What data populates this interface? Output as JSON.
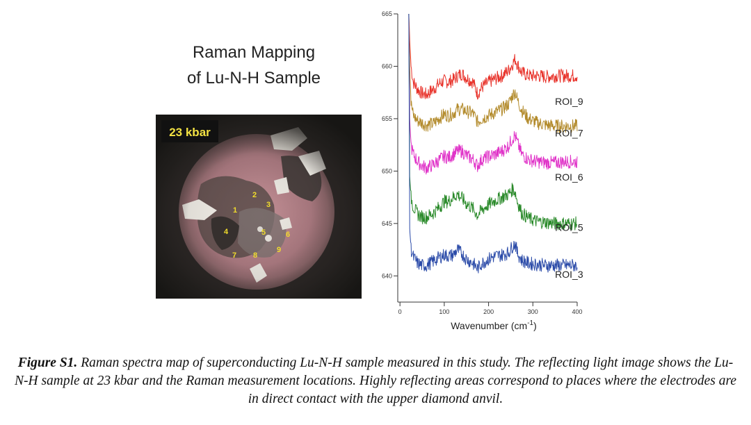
{
  "panel_title": {
    "line1": "Raman Mapping",
    "line2": "of Lu-N-H Sample"
  },
  "photo": {
    "pressure_label": "23 kbar",
    "points": [
      {
        "label": "1"
      },
      {
        "label": "2"
      },
      {
        "label": "3"
      },
      {
        "label": "4"
      },
      {
        "label": "5"
      },
      {
        "label": "6"
      },
      {
        "label": "7"
      },
      {
        "label": "8"
      },
      {
        "label": "9"
      }
    ]
  },
  "chart_data": {
    "type": "line",
    "title": "",
    "xlabel_main": "Wavenumber (cm",
    "xlabel_sup": "-1",
    "xlabel_close": ")",
    "ylabel": "",
    "xlim": [
      -5,
      400
    ],
    "ylim": [
      637.5,
      665
    ],
    "x_ticks": [
      0,
      100,
      200,
      300,
      400
    ],
    "y_ticks": [
      640,
      645,
      650,
      655,
      660,
      665
    ],
    "x_tick_labels": [
      "0",
      "100",
      "200",
      "300",
      "400"
    ],
    "y_tick_labels": [
      "640",
      "645",
      "650",
      "655",
      "660",
      "665"
    ],
    "x_range": [
      20,
      400
    ],
    "series": [
      {
        "name": "ROI_9",
        "color": "#e8322a",
        "baseline": 657.5,
        "x": [
          20,
          22,
          25,
          30,
          40,
          50,
          60,
          75,
          90,
          100,
          110,
          120,
          130,
          140,
          150,
          165,
          175,
          185,
          200,
          215,
          230,
          245,
          255,
          260,
          265,
          275,
          290,
          310,
          330,
          350,
          370,
          400
        ],
        "y": [
          665,
          662.5,
          660,
          658.5,
          657.8,
          657.4,
          657.3,
          657.8,
          658.4,
          658.6,
          658.5,
          658.7,
          659.1,
          659.3,
          658.9,
          658.5,
          657.4,
          658.0,
          658.5,
          658.8,
          659.1,
          659.6,
          660.3,
          660.7,
          660.2,
          659.4,
          659.1,
          659.1,
          659.0,
          659.1,
          659.1,
          659.1
        ]
      },
      {
        "name": "ROI_7",
        "color": "#b38b2c",
        "baseline": 654.5,
        "x": [
          20,
          22,
          25,
          30,
          40,
          50,
          60,
          75,
          90,
          100,
          110,
          120,
          130,
          140,
          150,
          165,
          175,
          185,
          200,
          215,
          230,
          245,
          255,
          260,
          265,
          275,
          290,
          310,
          330,
          350,
          370,
          400
        ],
        "y": [
          665,
          660,
          656.5,
          655.3,
          654.8,
          654.6,
          654.4,
          654.5,
          655.1,
          655.4,
          655.3,
          655.5,
          655.9,
          655.9,
          655.7,
          655.5,
          654.7,
          655.0,
          655.3,
          655.6,
          655.9,
          656.4,
          657.3,
          657.6,
          656.8,
          655.8,
          655.0,
          654.6,
          654.4,
          654.3,
          654.3,
          654.3
        ]
      },
      {
        "name": "ROI_6",
        "color": "#e033c8",
        "baseline": 650.3,
        "x": [
          20,
          22,
          25,
          30,
          40,
          50,
          60,
          75,
          90,
          100,
          110,
          120,
          130,
          140,
          150,
          165,
          175,
          185,
          200,
          215,
          230,
          245,
          255,
          260,
          265,
          275,
          290,
          310,
          330,
          350,
          370,
          400
        ],
        "y": [
          665,
          655,
          652.5,
          651.6,
          650.9,
          650.5,
          650.3,
          650.6,
          651.1,
          651.4,
          651.3,
          651.6,
          651.9,
          651.9,
          651.5,
          651.1,
          650.5,
          651.1,
          651.4,
          651.6,
          651.9,
          652.4,
          653.2,
          653.4,
          652.7,
          651.6,
          651.1,
          650.9,
          650.8,
          650.8,
          650.9,
          650.9
        ]
      },
      {
        "name": "ROI_5",
        "color": "#2a8a2a",
        "baseline": 645.5,
        "x": [
          20,
          22,
          25,
          30,
          40,
          50,
          60,
          75,
          90,
          100,
          110,
          120,
          130,
          140,
          150,
          165,
          175,
          185,
          200,
          215,
          230,
          245,
          255,
          260,
          265,
          275,
          290,
          310,
          330,
          350,
          370,
          400
        ],
        "y": [
          665,
          649.5,
          647.5,
          646.6,
          645.9,
          645.6,
          645.6,
          646.0,
          646.6,
          647.1,
          647.1,
          647.5,
          647.8,
          647.4,
          646.9,
          646.4,
          645.8,
          646.3,
          646.8,
          647.2,
          647.5,
          647.8,
          648.3,
          648.0,
          647.1,
          646.0,
          645.5,
          645.2,
          645.1,
          645.0,
          645.0,
          645.0
        ]
      },
      {
        "name": "ROI_3",
        "color": "#2a4aa8",
        "baseline": 641.0,
        "x": [
          20,
          22,
          25,
          30,
          40,
          50,
          60,
          75,
          90,
          100,
          110,
          120,
          130,
          140,
          150,
          165,
          175,
          185,
          200,
          215,
          230,
          245,
          255,
          260,
          265,
          275,
          290,
          310,
          330,
          350,
          370,
          400
        ],
        "y": [
          665,
          644.5,
          642.6,
          641.8,
          641.2,
          641.0,
          641.0,
          641.4,
          641.8,
          642.0,
          641.9,
          642.0,
          642.5,
          642.1,
          641.6,
          641.2,
          640.7,
          641.2,
          641.6,
          641.9,
          642.0,
          642.2,
          642.9,
          643.1,
          642.2,
          641.5,
          641.2,
          641.1,
          641.0,
          641.0,
          641.0,
          641.0
        ]
      }
    ],
    "series_labels": [
      "ROI_9",
      "ROI_7",
      "ROI_6",
      "ROI_5",
      "ROI_3"
    ]
  },
  "caption": {
    "label": "Figure S1.",
    "text": " Raman spectra map of superconducting Lu-N-H sample measured in this study. The reflecting light image shows the Lu-N-H sample at 23 kbar and the Raman measurement locations. Highly reflecting areas correspond to places where the electrodes are in direct contact with the upper diamond anvil."
  }
}
